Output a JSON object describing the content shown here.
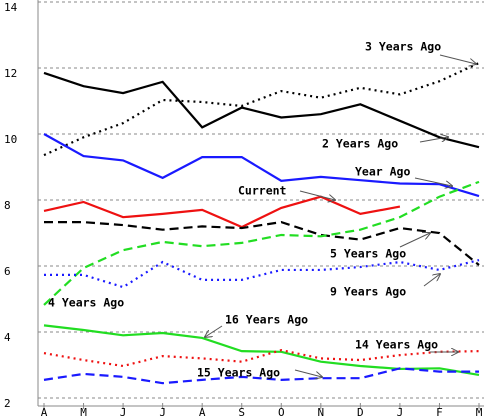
{
  "chart_data": {
    "type": "line",
    "categories": [
      "A",
      "M",
      "J",
      "J",
      "A",
      "S",
      "O",
      "N",
      "D",
      "J",
      "F",
      "M"
    ],
    "ylim": [
      2,
      14
    ],
    "yticks": [
      2,
      4,
      6,
      8,
      10,
      12,
      14
    ],
    "grid": true,
    "series": [
      {
        "name": "3 Years Ago",
        "color": "#000000",
        "dash": "dotted",
        "values": [
          9.36,
          9.9,
          10.33,
          11.03,
          10.97,
          10.85,
          11.3,
          11.1,
          11.4,
          11.2,
          11.6,
          12.15
        ]
      },
      {
        "name": "2 Years Ago",
        "color": "#000000",
        "dash": "solid",
        "values": [
          11.85,
          11.45,
          11.24,
          11.58,
          10.2,
          10.8,
          10.5,
          10.6,
          10.9,
          10.4,
          9.9,
          9.6
        ]
      },
      {
        "name": "Year Ago",
        "color": "#1a1aff",
        "dash": "solid",
        "values": [
          10.0,
          9.33,
          9.2,
          8.67,
          9.3,
          9.3,
          8.58,
          8.7,
          8.6,
          8.5,
          8.48,
          8.12
        ]
      },
      {
        "name": "Current",
        "color": "#ee1111",
        "dash": "solid",
        "values": [
          7.67,
          7.94,
          7.48,
          7.58,
          7.7,
          7.18,
          7.76,
          8.1,
          7.58,
          7.8,
          null,
          null
        ]
      },
      {
        "name": "5 Years Ago",
        "color": "#000000",
        "dash": "dashed",
        "values": [
          7.33,
          7.33,
          7.24,
          7.1,
          7.2,
          7.15,
          7.33,
          6.94,
          6.8,
          7.15,
          7.0,
          6.03
        ]
      },
      {
        "name": "4 Years Ago",
        "color": "#22dd22",
        "dash": "dashed",
        "values": [
          4.82,
          5.94,
          6.48,
          6.73,
          6.6,
          6.7,
          6.94,
          6.9,
          7.1,
          7.48,
          8.1,
          8.55
        ]
      },
      {
        "name": "9 Years Ago",
        "color": "#1a1aff",
        "dash": "dotted",
        "values": [
          5.73,
          5.73,
          5.36,
          6.12,
          5.58,
          5.58,
          5.88,
          5.88,
          5.97,
          6.12,
          5.88,
          6.18
        ]
      },
      {
        "name": "16 Years Ago",
        "color": "#22dd22",
        "dash": "solid",
        "values": [
          4.2,
          4.06,
          3.9,
          3.97,
          3.82,
          3.42,
          3.4,
          3.1,
          2.97,
          2.88,
          2.9,
          2.7
        ]
      },
      {
        "name": "14 Years Ago",
        "color": "#ee1111",
        "dash": "dotted",
        "values": [
          3.36,
          3.15,
          2.97,
          3.27,
          3.2,
          3.1,
          3.45,
          3.2,
          3.15,
          3.3,
          3.4,
          3.42
        ]
      },
      {
        "name": "15 Years Ago",
        "color": "#1a1aff",
        "dash": "dashed",
        "values": [
          2.55,
          2.73,
          2.64,
          2.45,
          2.55,
          2.64,
          2.55,
          2.6,
          2.6,
          2.9,
          2.8,
          2.8
        ]
      }
    ]
  }
}
